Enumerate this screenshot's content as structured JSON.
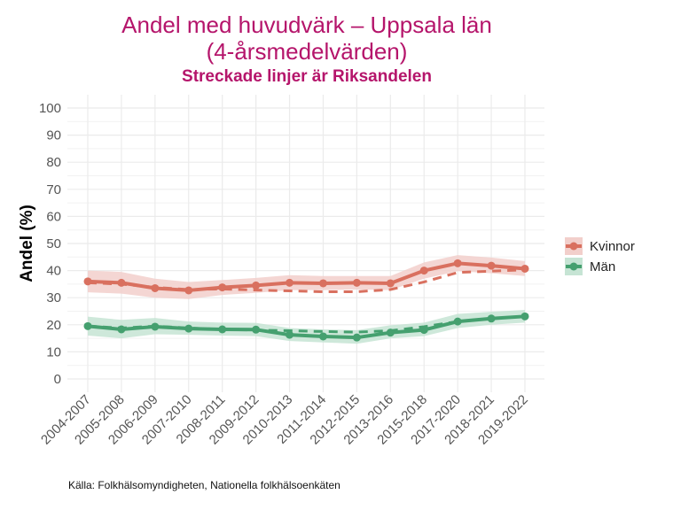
{
  "chart_data": {
    "type": "line",
    "title": "Andel med huvudvärk – Uppsala län",
    "title_line2": "(4-årsmedelvärden)",
    "subtitle": "Streckade linjer är Riksandelen",
    "xlabel": "",
    "ylabel": "Andel (%)",
    "ylim": [
      0,
      100
    ],
    "yticks": [
      0,
      10,
      20,
      30,
      40,
      50,
      60,
      70,
      80,
      90,
      100
    ],
    "grid": true,
    "legend_position": "right",
    "categories": [
      "2004-2007",
      "2005-2008",
      "2006-2009",
      "2007-2010",
      "2008-2011",
      "2009-2012",
      "2010-2013",
      "2011-2014",
      "2012-2015",
      "2013-2016",
      "2015-2018",
      "2017-2020",
      "2018-2021",
      "2019-2022"
    ],
    "series": [
      {
        "name": "Kvinnor",
        "color": "#d9705f",
        "ribbon_color": "#f2cfcb",
        "values": [
          36.0,
          35.5,
          33.5,
          32.7,
          33.8,
          34.5,
          35.5,
          35.3,
          35.5,
          35.3,
          40.0,
          42.7,
          41.8,
          40.7
        ],
        "lower": [
          32.0,
          31.5,
          30.0,
          29.5,
          31.0,
          31.8,
          32.8,
          32.8,
          33.0,
          32.8,
          37.0,
          39.8,
          39.0,
          38.0
        ],
        "upper": [
          40.0,
          39.5,
          37.0,
          35.8,
          36.5,
          37.3,
          38.3,
          38.0,
          38.0,
          38.0,
          43.0,
          45.7,
          44.8,
          43.5
        ],
        "national": [
          35.5,
          35.0,
          33.8,
          33.0,
          33.2,
          32.8,
          32.5,
          32.2,
          32.2,
          33.0,
          35.8,
          39.3,
          39.8,
          40.3
        ]
      },
      {
        "name": "Män",
        "color": "#45a06f",
        "ribbon_color": "#c6e4d4",
        "values": [
          19.5,
          18.3,
          19.3,
          18.6,
          18.3,
          18.2,
          16.3,
          15.7,
          15.3,
          17.1,
          18.1,
          21.2,
          22.3,
          23.1
        ],
        "lower": [
          16.0,
          15.0,
          16.5,
          16.3,
          16.0,
          15.8,
          14.0,
          13.5,
          13.0,
          15.0,
          15.8,
          18.8,
          20.0,
          20.8
        ],
        "upper": [
          23.0,
          21.8,
          22.5,
          21.2,
          20.8,
          20.7,
          18.8,
          18.3,
          18.0,
          19.8,
          20.8,
          24.0,
          24.8,
          25.5
        ],
        "national": [
          19.5,
          18.8,
          19.5,
          18.8,
          18.3,
          18.0,
          17.8,
          17.5,
          17.3,
          17.8,
          19.3,
          21.2,
          22.3,
          23.1
        ]
      }
    ],
    "caption": "Källa: Folkhälsomyndigheten, Nationella folkhälsoenkäten"
  }
}
